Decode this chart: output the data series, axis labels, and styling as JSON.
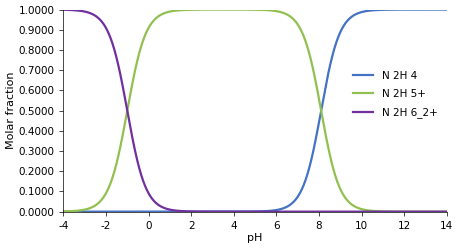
{
  "title": "",
  "xlabel": "pH",
  "ylabel": "Molar fraction",
  "xlim": [
    -4,
    14
  ],
  "ylim": [
    0,
    1.0
  ],
  "xticks": [
    -4,
    -2,
    0,
    2,
    4,
    6,
    8,
    10,
    12,
    14
  ],
  "ytick_labels": [
    "0.0000",
    "0.1000",
    "0.2000",
    "0.3000",
    "0.4000",
    "0.5000",
    "0.6000",
    "0.7000",
    "0.8000",
    "0.9000",
    "1.0000"
  ],
  "ytick_vals": [
    0.0,
    0.1,
    0.2,
    0.3,
    0.4,
    0.5,
    0.6,
    0.7,
    0.8,
    0.9,
    1.0
  ],
  "pKa1": -1.0,
  "pKa2": 8.1,
  "species_colors": [
    "#4472C4",
    "#92C050",
    "#7030A0"
  ],
  "species_labels": [
    "N 2H 4",
    "N 2H 5+",
    "N 2H 6_2+"
  ],
  "background_color": "#FFFFFF",
  "line_width": 1.6
}
